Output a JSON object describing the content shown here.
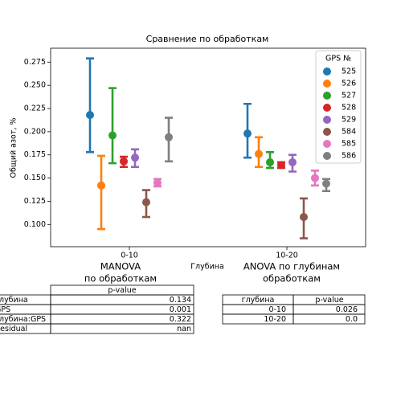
{
  "chart_data": {
    "type": "point",
    "title": "Сравнение по обработкам",
    "xlabel": "Глубина",
    "ylabel": "Общий азот, %",
    "categories": [
      "0-10",
      "10-20"
    ],
    "ylim": [
      0.076,
      0.29
    ],
    "yticks": [
      {
        "value": 0.1,
        "label": "0.100"
      },
      {
        "value": 0.125,
        "label": "0.125"
      },
      {
        "value": 0.15,
        "label": "0.150"
      },
      {
        "value": 0.175,
        "label": "0.175"
      },
      {
        "value": 0.2,
        "label": "0.200"
      },
      {
        "value": 0.225,
        "label": "0.225"
      },
      {
        "value": 0.25,
        "label": "0.250"
      },
      {
        "value": 0.275,
        "label": "0.275"
      }
    ],
    "legend_title": "GPS №",
    "legend": "upper right",
    "series": [
      {
        "name": "525",
        "color": "#1f77b4",
        "values": [
          0.218,
          0.198
        ],
        "lower": [
          0.178,
          0.172
        ],
        "upper": [
          0.279,
          0.23
        ]
      },
      {
        "name": "526",
        "color": "#ff7f0e",
        "values": [
          0.142,
          0.176
        ],
        "lower": [
          0.095,
          0.162
        ],
        "upper": [
          0.174,
          0.194
        ]
      },
      {
        "name": "527",
        "color": "#2ca02c",
        "values": [
          0.196,
          0.167
        ],
        "lower": [
          0.166,
          0.161
        ],
        "upper": [
          0.247,
          0.178
        ]
      },
      {
        "name": "528",
        "color": "#d62728",
        "values": [
          0.168,
          0.164
        ],
        "lower": [
          0.162,
          0.161
        ],
        "upper": [
          0.173,
          0.167
        ]
      },
      {
        "name": "529",
        "color": "#9467bd",
        "values": [
          0.172,
          0.167
        ],
        "lower": [
          0.162,
          0.157
        ],
        "upper": [
          0.181,
          0.175
        ]
      },
      {
        "name": "584",
        "color": "#8c564b",
        "values": [
          0.124,
          0.108
        ],
        "lower": [
          0.108,
          0.085
        ],
        "upper": [
          0.137,
          0.128
        ]
      },
      {
        "name": "585",
        "color": "#e377c2",
        "values": [
          0.145,
          0.15
        ],
        "lower": [
          0.141,
          0.142
        ],
        "upper": [
          0.149,
          0.158
        ]
      },
      {
        "name": "586",
        "color": "#7f7f7f",
        "values": [
          0.194,
          0.144
        ],
        "lower": [
          0.168,
          0.136
        ],
        "upper": [
          0.215,
          0.149
        ]
      }
    ]
  },
  "manova": {
    "caption": [
      "MANOVA",
      "по обработкам"
    ],
    "header": [
      "p-value"
    ],
    "rows": [
      [
        "глубина",
        "0.134"
      ],
      [
        "GPS",
        "0.001"
      ],
      [
        "глубина:GPS",
        "0.322"
      ],
      [
        "Residual",
        "nan"
      ]
    ]
  },
  "anova": {
    "caption": [
      "ANOVA по глубинам",
      "обработкам"
    ],
    "header": [
      "глубина",
      "p-value"
    ],
    "rows": [
      [
        "0-10",
        "0.026"
      ],
      [
        "10-20",
        "0.0"
      ]
    ]
  }
}
